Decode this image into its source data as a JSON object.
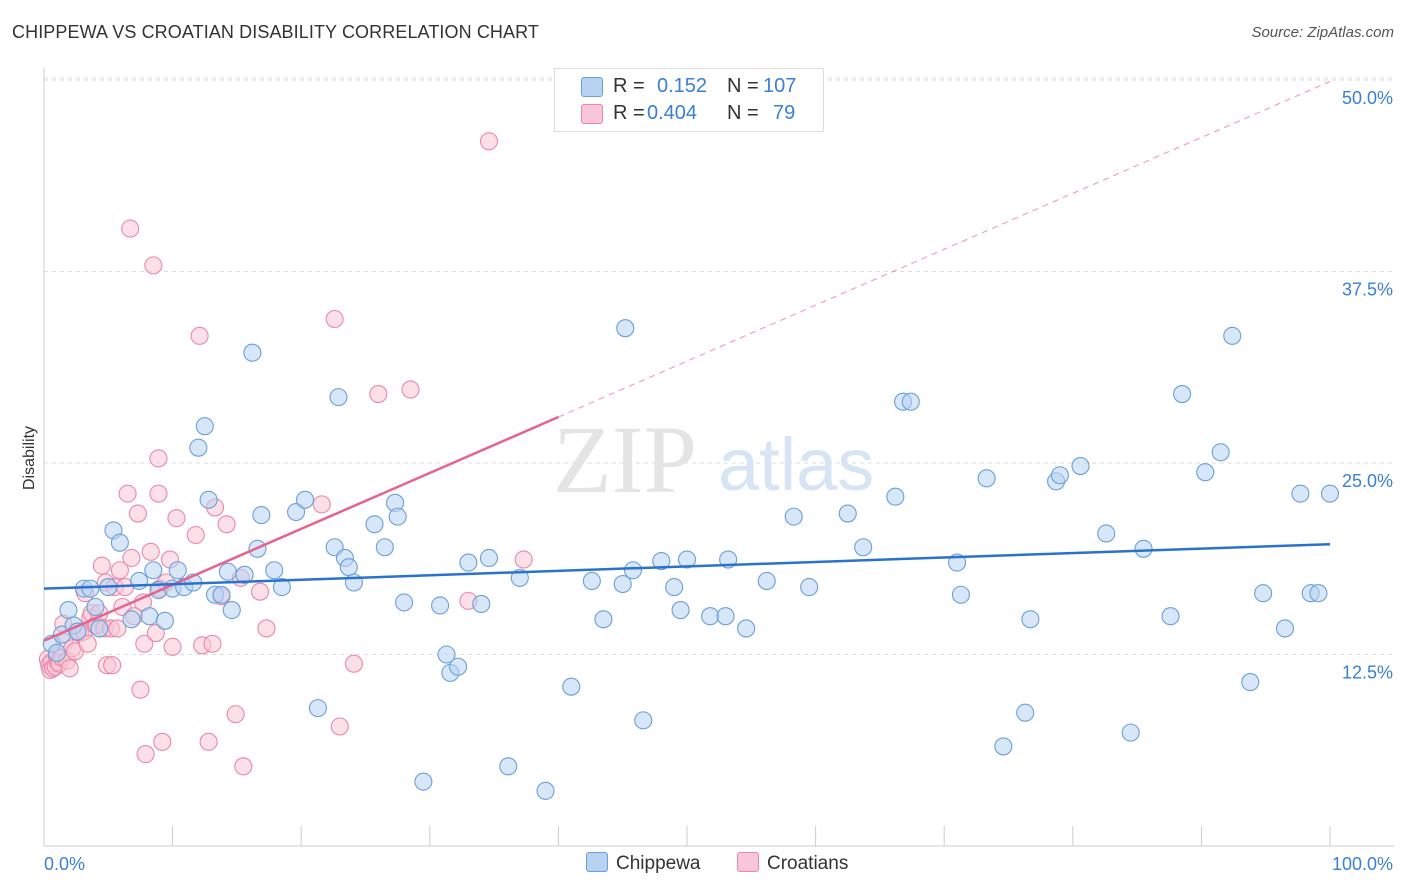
{
  "title": "CHIPPEWA VS CROATIAN DISABILITY CORRELATION CHART",
  "source": "Source: ZipAtlas.com",
  "watermark": {
    "zip": "ZIP",
    "atlas": "atlas"
  },
  "legend": {
    "rows": [
      {
        "r_label": "R =",
        "r_value": "0.152",
        "n_label": "N =",
        "n_value": "107"
      },
      {
        "r_label": "R =",
        "r_value": "0.404",
        "n_label": "N =",
        "n_value": "79"
      }
    ]
  },
  "colors": {
    "chippewa_fill": "#b8d3f2",
    "chippewa_stroke": "#6a9fd8",
    "chippewa_line": "#2a72d0",
    "croatians_fill": "#f8c6d6",
    "croatians_stroke": "#eb88a8",
    "croatians_line": "#e8628f",
    "axis_text": "#3a7fd5",
    "grid": "#dddddd"
  },
  "chart_data": {
    "type": "scatter",
    "title": "CHIPPEWA VS CROATIAN DISABILITY CORRELATION CHART",
    "xlabel": "",
    "ylabel": "Disability",
    "xlim": [
      0,
      100
    ],
    "ylim": [
      0,
      50
    ],
    "x_tick_labels": [
      "0.0%",
      "100.0%"
    ],
    "y_ticks": [
      12.5,
      25.0,
      37.5,
      50.0
    ],
    "y_tick_labels": [
      "12.5%",
      "25.0%",
      "37.5%",
      "50.0%"
    ],
    "grid": true,
    "legend_position": "bottom-center",
    "series": [
      {
        "name": "Chippewa",
        "r": 0.152,
        "n": 107,
        "trend": {
          "x": [
            0,
            100
          ],
          "y": [
            16.8,
            19.7
          ],
          "style": "solid"
        },
        "points": [
          [
            0.6,
            13.2
          ],
          [
            1.0,
            12.6
          ],
          [
            1.4,
            13.8
          ],
          [
            1.9,
            15.4
          ],
          [
            2.3,
            14.4
          ],
          [
            2.6,
            14.0
          ],
          [
            3.1,
            16.8
          ],
          [
            3.6,
            16.8
          ],
          [
            4.0,
            15.6
          ],
          [
            4.3,
            14.2
          ],
          [
            5.0,
            16.9
          ],
          [
            5.4,
            20.6
          ],
          [
            5.9,
            19.8
          ],
          [
            6.8,
            14.8
          ],
          [
            7.4,
            17.3
          ],
          [
            8.2,
            15.0
          ],
          [
            8.5,
            18.0
          ],
          [
            8.9,
            16.7
          ],
          [
            9.4,
            14.7
          ],
          [
            10.0,
            16.8
          ],
          [
            10.4,
            18.0
          ],
          [
            10.9,
            16.9
          ],
          [
            11.6,
            17.2
          ],
          [
            12.0,
            26.0
          ],
          [
            12.5,
            27.4
          ],
          [
            12.8,
            22.6
          ],
          [
            13.3,
            16.4
          ],
          [
            13.8,
            16.4
          ],
          [
            14.3,
            17.9
          ],
          [
            14.6,
            15.4
          ],
          [
            15.6,
            17.7
          ],
          [
            16.2,
            32.2
          ],
          [
            16.6,
            19.4
          ],
          [
            16.9,
            21.6
          ],
          [
            17.9,
            18.0
          ],
          [
            18.5,
            16.9
          ],
          [
            19.6,
            21.8
          ],
          [
            20.3,
            22.6
          ],
          [
            21.3,
            9.0
          ],
          [
            22.6,
            19.5
          ],
          [
            22.9,
            29.3
          ],
          [
            23.4,
            18.8
          ],
          [
            23.7,
            18.2
          ],
          [
            24.1,
            17.2
          ],
          [
            25.7,
            21.0
          ],
          [
            26.5,
            19.5
          ],
          [
            27.3,
            22.4
          ],
          [
            27.5,
            21.5
          ],
          [
            28.0,
            15.9
          ],
          [
            29.5,
            4.2
          ],
          [
            30.8,
            15.7
          ],
          [
            31.3,
            12.5
          ],
          [
            31.6,
            11.3
          ],
          [
            32.2,
            11.7
          ],
          [
            33.0,
            18.5
          ],
          [
            34.0,
            15.8
          ],
          [
            34.6,
            18.8
          ],
          [
            36.1,
            5.2
          ],
          [
            37.0,
            17.5
          ],
          [
            39.0,
            3.6
          ],
          [
            41.0,
            10.4
          ],
          [
            42.6,
            17.3
          ],
          [
            43.5,
            14.8
          ],
          [
            45.0,
            17.1
          ],
          [
            45.2,
            33.8
          ],
          [
            45.8,
            18.0
          ],
          [
            46.6,
            8.2
          ],
          [
            48.0,
            18.6
          ],
          [
            49.0,
            16.9
          ],
          [
            49.5,
            15.4
          ],
          [
            50.0,
            18.7
          ],
          [
            51.8,
            15.0
          ],
          [
            53.0,
            15.0
          ],
          [
            53.2,
            18.7
          ],
          [
            54.6,
            14.2
          ],
          [
            56.2,
            17.3
          ],
          [
            58.3,
            21.5
          ],
          [
            59.5,
            16.9
          ],
          [
            62.5,
            21.7
          ],
          [
            63.7,
            19.5
          ],
          [
            66.2,
            22.8
          ],
          [
            66.8,
            29.0
          ],
          [
            67.4,
            29.0
          ],
          [
            71.0,
            18.5
          ],
          [
            71.3,
            16.4
          ],
          [
            73.3,
            24.0
          ],
          [
            74.6,
            6.5
          ],
          [
            76.3,
            8.7
          ],
          [
            76.7,
            14.8
          ],
          [
            78.7,
            23.8
          ],
          [
            79.0,
            24.2
          ],
          [
            80.6,
            24.8
          ],
          [
            82.6,
            20.4
          ],
          [
            84.5,
            7.4
          ],
          [
            85.5,
            19.4
          ],
          [
            87.6,
            15.0
          ],
          [
            88.5,
            29.5
          ],
          [
            90.3,
            24.4
          ],
          [
            91.5,
            25.7
          ],
          [
            92.4,
            33.3
          ],
          [
            93.8,
            10.7
          ],
          [
            94.8,
            16.5
          ],
          [
            96.5,
            14.2
          ],
          [
            97.7,
            23.0
          ],
          [
            98.5,
            16.5
          ],
          [
            99.1,
            16.5
          ],
          [
            100.0,
            23.0
          ]
        ]
      },
      {
        "name": "Croatians",
        "r": 0.404,
        "n": 79,
        "trend": {
          "x": [
            0,
            40
          ],
          "y": [
            13.4,
            28.0
          ],
          "style": "solid",
          "extended": {
            "x": [
              40,
              100
            ],
            "y": [
              28.0,
              49.9
            ],
            "style": "dashed"
          }
        },
        "points": [
          [
            0.3,
            12.2
          ],
          [
            0.4,
            11.8
          ],
          [
            0.5,
            11.5
          ],
          [
            0.6,
            12.0
          ],
          [
            0.7,
            11.6
          ],
          [
            0.9,
            11.7
          ],
          [
            1.0,
            12.4
          ],
          [
            1.1,
            12.0
          ],
          [
            1.2,
            11.9
          ],
          [
            1.4,
            12.3
          ],
          [
            1.5,
            14.5
          ],
          [
            1.6,
            13.3
          ],
          [
            1.8,
            12.1
          ],
          [
            2.0,
            11.6
          ],
          [
            2.2,
            12.9
          ],
          [
            2.4,
            12.7
          ],
          [
            2.6,
            14.0
          ],
          [
            2.8,
            13.9
          ],
          [
            3.1,
            14.0
          ],
          [
            3.2,
            16.5
          ],
          [
            3.4,
            13.2
          ],
          [
            3.6,
            14.9
          ],
          [
            3.7,
            15.2
          ],
          [
            4.0,
            14.4
          ],
          [
            4.1,
            14.4
          ],
          [
            4.3,
            15.2
          ],
          [
            4.5,
            18.3
          ],
          [
            4.7,
            14.2
          ],
          [
            4.8,
            17.2
          ],
          [
            4.9,
            11.8
          ],
          [
            5.2,
            14.2
          ],
          [
            5.3,
            11.8
          ],
          [
            5.5,
            16.9
          ],
          [
            5.7,
            14.2
          ],
          [
            5.9,
            18.0
          ],
          [
            6.1,
            15.6
          ],
          [
            6.3,
            16.9
          ],
          [
            6.5,
            23.0
          ],
          [
            6.7,
            40.3
          ],
          [
            6.8,
            18.8
          ],
          [
            7.0,
            15.0
          ],
          [
            7.3,
            21.7
          ],
          [
            7.5,
            10.2
          ],
          [
            7.7,
            15.9
          ],
          [
            7.8,
            13.2
          ],
          [
            7.9,
            6.0
          ],
          [
            8.3,
            19.2
          ],
          [
            8.5,
            37.9
          ],
          [
            8.7,
            13.9
          ],
          [
            8.9,
            25.3
          ],
          [
            8.9,
            23.0
          ],
          [
            9.0,
            16.8
          ],
          [
            9.2,
            6.8
          ],
          [
            9.5,
            17.2
          ],
          [
            9.8,
            18.7
          ],
          [
            10.0,
            13.0
          ],
          [
            10.3,
            21.4
          ],
          [
            11.8,
            20.3
          ],
          [
            12.1,
            33.3
          ],
          [
            12.3,
            13.1
          ],
          [
            12.8,
            6.8
          ],
          [
            13.1,
            13.2
          ],
          [
            13.3,
            22.1
          ],
          [
            13.8,
            16.3
          ],
          [
            14.2,
            21.0
          ],
          [
            14.9,
            8.6
          ],
          [
            15.3,
            17.5
          ],
          [
            15.5,
            5.2
          ],
          [
            16.8,
            16.6
          ],
          [
            17.3,
            14.2
          ],
          [
            21.6,
            22.3
          ],
          [
            22.6,
            34.4
          ],
          [
            23.0,
            7.8
          ],
          [
            24.1,
            11.9
          ],
          [
            26.0,
            29.5
          ],
          [
            28.5,
            29.8
          ],
          [
            33.0,
            16.0
          ],
          [
            34.6,
            46.0
          ],
          [
            37.3,
            18.7
          ]
        ]
      }
    ]
  }
}
